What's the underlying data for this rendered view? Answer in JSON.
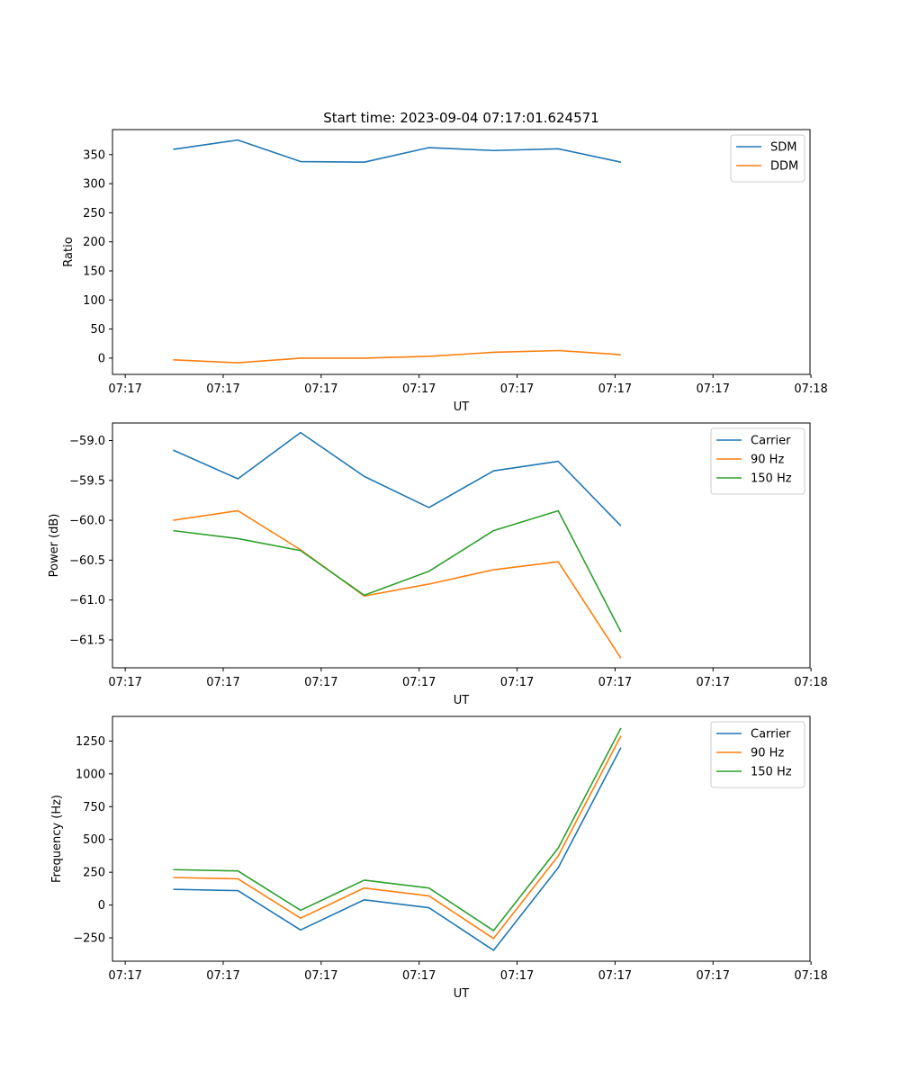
{
  "figure_title": "Start time: 2023-09-04 07:17:01.624571",
  "colors": {
    "blue": "#1f77b4",
    "orange": "#ff7f0e",
    "green": "#2ca02c"
  },
  "chart_data": [
    {
      "type": "line",
      "title": "Start time: 2023-09-04 07:17:01.624571",
      "xlabel": "UT",
      "ylabel": "Ratio",
      "x_ticks": [
        "07:17",
        "07:17",
        "07:17",
        "07:17",
        "07:17",
        "07:17",
        "07:17",
        "07:18"
      ],
      "x_tick_values": [
        0,
        1,
        2,
        3,
        4,
        5,
        6,
        7
      ],
      "xlim": [
        -0.13,
        6.99
      ],
      "ylim": [
        -28,
        393
      ],
      "y_ticks": [
        0,
        50,
        100,
        150,
        200,
        250,
        300,
        350
      ],
      "x": [
        0.49,
        1.15,
        1.79,
        2.44,
        3.1,
        3.76,
        4.42,
        5.06
      ],
      "legend_position": "top-right",
      "series": [
        {
          "name": "SDM",
          "color": "#1f77b4",
          "values": [
            359,
            375,
            338,
            337,
            362,
            357,
            360,
            337
          ]
        },
        {
          "name": "DDM",
          "color": "#ff7f0e",
          "values": [
            -3,
            -8,
            0,
            0,
            3,
            10,
            13,
            6
          ]
        }
      ]
    },
    {
      "type": "line",
      "title": "",
      "xlabel": "UT",
      "ylabel": "Power (dB)",
      "x_ticks": [
        "07:17",
        "07:17",
        "07:17",
        "07:17",
        "07:17",
        "07:17",
        "07:17",
        "07:18"
      ],
      "x_tick_values": [
        0,
        1,
        2,
        3,
        4,
        5,
        6,
        7
      ],
      "xlim": [
        -0.13,
        6.99
      ],
      "ylim": [
        -61.85,
        -58.78
      ],
      "y_ticks": [
        -61.5,
        -61.0,
        -60.5,
        -60.0,
        -59.5,
        -59.0
      ],
      "y_tick_labels": [
        "−61.5",
        "−61.0",
        "−60.5",
        "−60.0",
        "−59.5",
        "−59.0"
      ],
      "x": [
        0.49,
        1.15,
        1.79,
        2.44,
        3.1,
        3.76,
        4.42,
        5.06
      ],
      "legend_position": "top-right",
      "series": [
        {
          "name": "Carrier",
          "color": "#1f77b4",
          "values": [
            -59.12,
            -59.48,
            -58.9,
            -59.45,
            -59.84,
            -59.38,
            -59.26,
            -60.07
          ]
        },
        {
          "name": "90 Hz",
          "color": "#ff7f0e",
          "values": [
            -60.0,
            -59.88,
            -60.37,
            -60.95,
            -60.8,
            -60.62,
            -60.52,
            -61.73
          ]
        },
        {
          "name": "150 Hz",
          "color": "#2ca02c",
          "values": [
            -60.13,
            -60.23,
            -60.38,
            -60.94,
            -60.64,
            -60.13,
            -59.88,
            -61.4
          ]
        }
      ]
    },
    {
      "type": "line",
      "title": "",
      "xlabel": "UT",
      "ylabel": "Frequency (Hz)",
      "x_ticks": [
        "07:17",
        "07:17",
        "07:17",
        "07:17",
        "07:17",
        "07:17",
        "07:17",
        "07:18"
      ],
      "x_tick_values": [
        0,
        1,
        2,
        3,
        4,
        5,
        6,
        7
      ],
      "xlim": [
        -0.13,
        6.99
      ],
      "ylim": [
        -428,
        1438
      ],
      "y_ticks": [
        -250,
        0,
        250,
        500,
        750,
        1000,
        1250
      ],
      "y_tick_labels": [
        "−250",
        "0",
        "250",
        "500",
        "750",
        "1000",
        "1250"
      ],
      "x": [
        0.49,
        1.15,
        1.79,
        2.44,
        3.1,
        3.76,
        4.42,
        5.06
      ],
      "legend_position": "top-right",
      "series": [
        {
          "name": "Carrier",
          "color": "#1f77b4",
          "values": [
            120,
            110,
            -190,
            40,
            -20,
            -345,
            285,
            1200
          ]
        },
        {
          "name": "90 Hz",
          "color": "#ff7f0e",
          "values": [
            210,
            200,
            -100,
            130,
            70,
            -255,
            375,
            1290
          ]
        },
        {
          "name": "150 Hz",
          "color": "#2ca02c",
          "values": [
            270,
            260,
            -40,
            190,
            130,
            -195,
            435,
            1350
          ]
        }
      ]
    }
  ]
}
